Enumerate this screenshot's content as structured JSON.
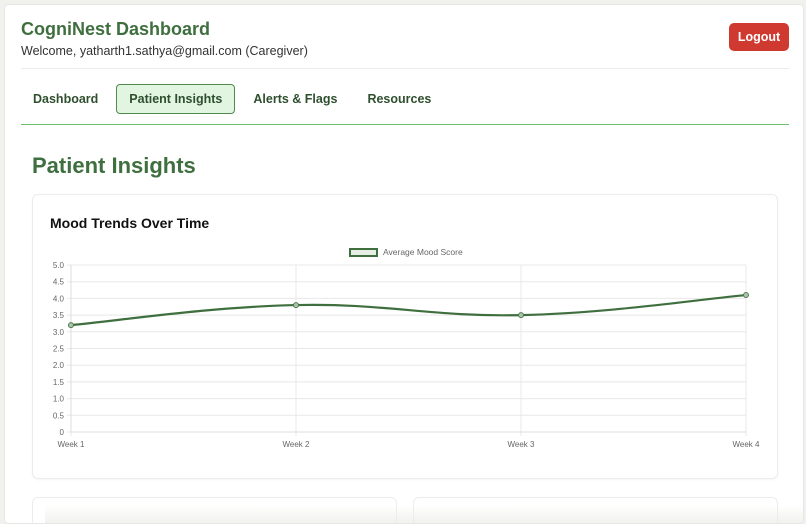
{
  "app": {
    "title": "CogniNest Dashboard",
    "welcome": "Welcome, yatharth1.sathya@gmail.com (Caregiver)",
    "logout_label": "Logout"
  },
  "tabs": [
    {
      "label": "Dashboard",
      "active": false
    },
    {
      "label": "Patient Insights",
      "active": true
    },
    {
      "label": "Alerts & Flags",
      "active": false
    },
    {
      "label": "Resources",
      "active": false
    }
  ],
  "section": {
    "title": "Patient Insights"
  },
  "mood_card": {
    "title": "Mood Trends Over Time"
  },
  "colors": {
    "brand_green": "#3f6f3f",
    "tab_active_bg": "#e1f5e1",
    "logout_red": "#d0392f",
    "tab_underline": "#6abf6a"
  },
  "chart_data": {
    "type": "line",
    "title": "Mood Trends Over Time",
    "categories": [
      "Week 1",
      "Week 2",
      "Week 3",
      "Week 4"
    ],
    "series": [
      {
        "name": "Average Mood Score",
        "values": [
          3.2,
          3.8,
          3.5,
          4.1
        ],
        "color": "#3f6f3f"
      }
    ],
    "xlabel": "",
    "ylabel": "",
    "ylim": [
      0,
      5.0
    ],
    "yticks": [
      "0",
      "0.5",
      "1.0",
      "1.5",
      "2.0",
      "2.5",
      "3.0",
      "3.5",
      "4.0",
      "4.5",
      "5.0"
    ],
    "grid": true,
    "legend_position": "top",
    "smooth": true
  }
}
